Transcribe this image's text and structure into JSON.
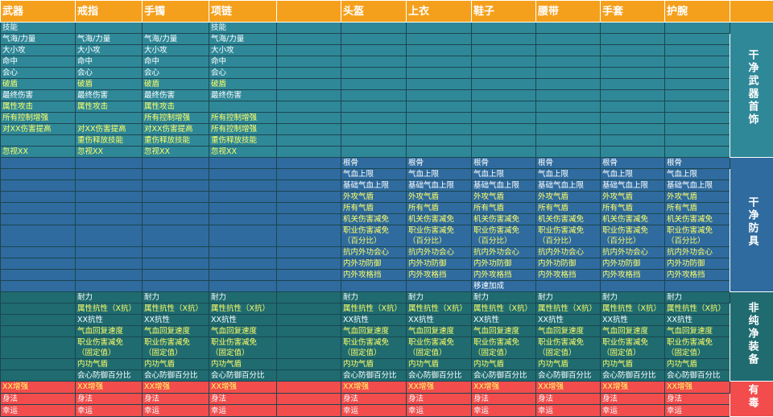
{
  "header": {
    "color": "#f5a01c",
    "columns": [
      "武器",
      "戒指",
      "手镯",
      "项链",
      null,
      "头盔",
      "上衣",
      "鞋子",
      "腰带",
      "手套",
      "护腕",
      null
    ]
  },
  "sections": [
    {
      "label": "干净武器首饰",
      "color": "#2f8898",
      "rows": [
        {
          "color": "#ffffff",
          "cells": [
            "技能",
            null,
            null,
            "技能"
          ]
        },
        {
          "color": "#ffffff",
          "cells": [
            "气海/力量",
            "气海/力量",
            "气海/力量",
            "气海/力量"
          ]
        },
        {
          "color": "#ffffff",
          "cells": [
            "大小攻",
            "大小攻",
            "大小攻",
            "大小攻"
          ]
        },
        {
          "color": "#ffffff",
          "cells": [
            "命中",
            "命中",
            "命中",
            "命中"
          ]
        },
        {
          "color": "#ffffff",
          "cells": [
            "会心",
            "会心",
            "会心",
            "会心"
          ]
        },
        {
          "color": "#ffff66",
          "cells": [
            "破盾",
            "破盾",
            "破盾",
            "破盾"
          ]
        },
        {
          "color": "#ffffff",
          "cells": [
            "最终伤害",
            "最终伤害",
            "最终伤害",
            "最终伤害"
          ]
        },
        {
          "color": "#ffff66",
          "cells": [
            "属性攻击",
            "属性攻击",
            "属性攻击",
            null
          ]
        },
        {
          "color": "#ffff66",
          "cells": [
            "所有控制增强",
            null,
            "所有控制增强",
            "所有控制增强"
          ]
        },
        {
          "color": "#ffff66",
          "cells": [
            "对XX伤害提高",
            "对XX伤害提高",
            "对XX伤害提高",
            "所有控制增强"
          ]
        },
        {
          "color": "#ffff66",
          "cells": [
            null,
            "重伤释放技能",
            "重伤释放技能",
            "重伤释放技能"
          ]
        },
        {
          "color": "#ffff66",
          "cells": [
            "忽视XX",
            "忽视XX",
            "忽视XX",
            "忽视XX"
          ]
        }
      ]
    },
    {
      "label": "干净防具",
      "color": "#2f6b9e",
      "rows": [
        {
          "color": "#ffffff",
          "cells": [
            null,
            null,
            null,
            null,
            null,
            "根骨",
            "根骨",
            "根骨",
            "根骨",
            "根骨",
            "根骨"
          ]
        },
        {
          "color": "#ffffff",
          "cells": [
            null,
            null,
            null,
            null,
            null,
            "气血上限",
            "气血上限",
            "气血上限",
            "气血上限",
            "气血上限",
            "气血上限"
          ]
        },
        {
          "color": "#ffffff",
          "cells": [
            null,
            null,
            null,
            null,
            null,
            "基础气血上限",
            "基础气血上限",
            "基础气血上限",
            "基础气血上限",
            "基础气血上限",
            "基础气血上限"
          ]
        },
        {
          "color": "#ffff66",
          "cells": [
            null,
            null,
            null,
            null,
            null,
            "外攻气盾",
            "外攻气盾",
            "外攻气盾",
            "外攻气盾",
            "外攻气盾",
            "外攻气盾"
          ]
        },
        {
          "color": "#ffff66",
          "cells": [
            null,
            null,
            null,
            null,
            null,
            "所有气盾",
            "所有气盾",
            "所有气盾",
            "所有气盾",
            "所有气盾",
            "所有气盾"
          ]
        },
        {
          "color": "#ffff66",
          "cells": [
            null,
            null,
            null,
            null,
            null,
            "机关伤害减免",
            "机关伤害减免",
            "机关伤害减免",
            "机关伤害减免",
            "机关伤害减免",
            "机关伤害减免"
          ]
        },
        {
          "color": "#ffff66",
          "cells": [
            null,
            null,
            null,
            null,
            null,
            "职业伤害减免\n（百分比）",
            "职业伤害减免\n（百分比）",
            "职业伤害减免\n（百分比）",
            "职业伤害减免\n（百分比）",
            "职业伤害减免\n（百分比）",
            "职业伤害减免\n（百分比）"
          ]
        },
        {
          "color": "#ffff66",
          "cells": [
            null,
            null,
            null,
            null,
            null,
            "抗内外功会心",
            "抗内外功会心",
            "抗内外功会心",
            "抗内外功会心",
            "抗内外功会心",
            "抗内外功会心"
          ]
        },
        {
          "color": "#ffff66",
          "cells": [
            null,
            null,
            null,
            null,
            null,
            "内外功防御",
            "内外功防御",
            "内外功防御",
            "内外功防御",
            "内外功防御",
            "内外功防御"
          ]
        },
        {
          "color": "#ffff66",
          "cells": [
            null,
            null,
            null,
            null,
            null,
            "内外攻格挡",
            "内外攻格挡",
            "内外攻格挡",
            "内外攻格挡",
            "内外攻格挡",
            "内外攻格挡"
          ]
        },
        {
          "color": "#ffffff",
          "cells": [
            null,
            null,
            null,
            null,
            null,
            null,
            null,
            "移速加成"
          ]
        }
      ]
    },
    {
      "label": "非纯净装备",
      "color": "#1f6b70",
      "rows": [
        {
          "color": "#ffffff",
          "cells": [
            null,
            "耐力",
            "耐力",
            "耐力",
            null,
            "耐力",
            "耐力",
            "耐力",
            "耐力",
            "耐力",
            "耐力"
          ]
        },
        {
          "color": "#ffff66",
          "cells": [
            null,
            "属性抗性（X抗）",
            "属性抗性（X抗）",
            "属性抗性（X抗）",
            null,
            "属性抗性（X抗）",
            "属性抗性（X抗）",
            "属性抗性（X抗）",
            "属性抗性（X抗）",
            "属性抗性（X抗）",
            "属性抗性（X抗）"
          ]
        },
        {
          "color": "#ffffff",
          "cells": [
            null,
            "XX抗性",
            "XX抗性",
            "XX抗性",
            null,
            "XX抗性",
            "XX抗性",
            "XX抗性",
            "XX抗性",
            "XX抗性",
            "XX抗性"
          ]
        },
        {
          "color": "#ffff66",
          "cells": [
            null,
            "气血回复速度",
            "气血回复速度",
            "气血回复速度",
            null,
            "气血回复速度",
            "气血回复速度",
            "气血回复速度",
            "气血回复速度",
            "气血回复速度",
            "气血回复速度"
          ]
        },
        {
          "color": "#ffff66",
          "cells": [
            null,
            "职业伤害减免\n（固定值）",
            "职业伤害减免\n（固定值）",
            "职业伤害减免\n（固定值）",
            null,
            "职业伤害减免\n（固定值）",
            "职业伤害减免\n（固定值）",
            "职业伤害减免\n（固定值）",
            "职业伤害减免\n（固定值）",
            "职业伤害减免\n（固定值）",
            "职业伤害减免\n（固定值）"
          ]
        },
        {
          "color": "#ffff66",
          "cells": [
            null,
            "内功气盾",
            "内功气盾",
            "内功气盾",
            null,
            "内功气盾",
            "内功气盾",
            "内功气盾",
            "内功气盾",
            "内功气盾",
            "内功气盾"
          ]
        },
        {
          "color": "#ffffff",
          "cells": [
            null,
            "会心防御百分比",
            "会心防御百分比",
            "会心防御百分比",
            null,
            "会心防御百分比",
            "会心防御百分比",
            "会心防御百分比",
            "会心防御百分比",
            "会心防御百分比",
            "会心防御百分比"
          ]
        }
      ]
    },
    {
      "label": "有毒",
      "color": "#f24c4c",
      "rows": [
        {
          "color": "#ffff66",
          "cells": [
            "XX增强",
            "XX增强",
            "XX增强",
            "XX增强",
            null,
            "XX增强",
            "XX增强",
            "XX增强",
            "XX增强",
            "XX增强",
            "XX增强"
          ]
        },
        {
          "color": "#ffffff",
          "cells": [
            "身法",
            "身法",
            "身法",
            "身法",
            null,
            "身法",
            "身法",
            "身法",
            "身法",
            "身法",
            "身法"
          ]
        },
        {
          "color": "#ffffff",
          "cells": [
            "幸运",
            "幸运",
            "幸运",
            "幸运",
            null,
            "幸运",
            "幸运",
            "幸运",
            "幸运",
            "幸运",
            "幸运"
          ]
        }
      ]
    }
  ]
}
